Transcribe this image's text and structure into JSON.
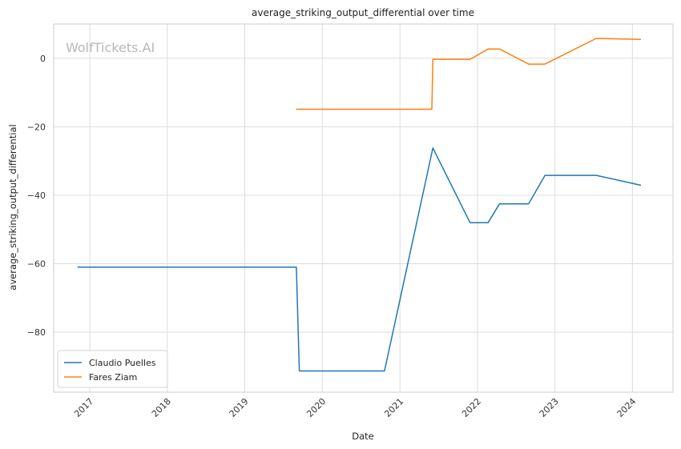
{
  "watermark": "WolfTickets.AI",
  "chart_data": {
    "type": "line",
    "title": "average_striking_output_differential over time",
    "xlabel": "Date",
    "ylabel": "average_striking_output_differential",
    "x_type": "date",
    "xlim": [
      "2016-07-15",
      "2024-07-10"
    ],
    "ylim": [
      -97.5,
      10
    ],
    "x_ticks": [
      "2017-01-01",
      "2018-01-01",
      "2019-01-01",
      "2020-01-01",
      "2021-01-01",
      "2022-01-01",
      "2023-01-01",
      "2024-01-01"
    ],
    "x_tick_labels": [
      "2017",
      "2018",
      "2019",
      "2020",
      "2021",
      "2022",
      "2023",
      "2024"
    ],
    "y_ticks": [
      0,
      -20,
      -40,
      -60,
      -80
    ],
    "y_tick_labels": [
      "0",
      "−20",
      "−40",
      "−60",
      "−80"
    ],
    "grid": true,
    "legend_position": "lower-left",
    "series": [
      {
        "name": "Claudio Puelles",
        "color": "#1f77b4",
        "points": [
          [
            "2016-11-05",
            -61
          ],
          [
            "2019-09-01",
            -61
          ],
          [
            "2019-09-15",
            -91.3
          ],
          [
            "2020-10-20",
            -91.3
          ],
          [
            "2021-06-05",
            -26.2
          ],
          [
            "2021-11-27",
            -48
          ],
          [
            "2022-02-20",
            -48
          ],
          [
            "2022-04-15",
            -42.5
          ],
          [
            "2022-08-30",
            -42.5
          ],
          [
            "2022-11-15",
            -34.2
          ],
          [
            "2023-07-15",
            -34.2
          ],
          [
            "2024-02-10",
            -37.1
          ]
        ]
      },
      {
        "name": "Fares Ziam",
        "color": "#ff7f0e",
        "points": [
          [
            "2019-08-31",
            -14.9
          ],
          [
            "2021-05-31",
            -14.9
          ],
          [
            "2021-06-05",
            -0.3
          ],
          [
            "2021-11-27",
            -0.3
          ],
          [
            "2022-02-20",
            2.7
          ],
          [
            "2022-04-15",
            2.7
          ],
          [
            "2022-08-30",
            -1.7
          ],
          [
            "2022-11-15",
            -1.7
          ],
          [
            "2023-07-15",
            5.8
          ],
          [
            "2024-02-10",
            5.5
          ]
        ]
      }
    ]
  }
}
